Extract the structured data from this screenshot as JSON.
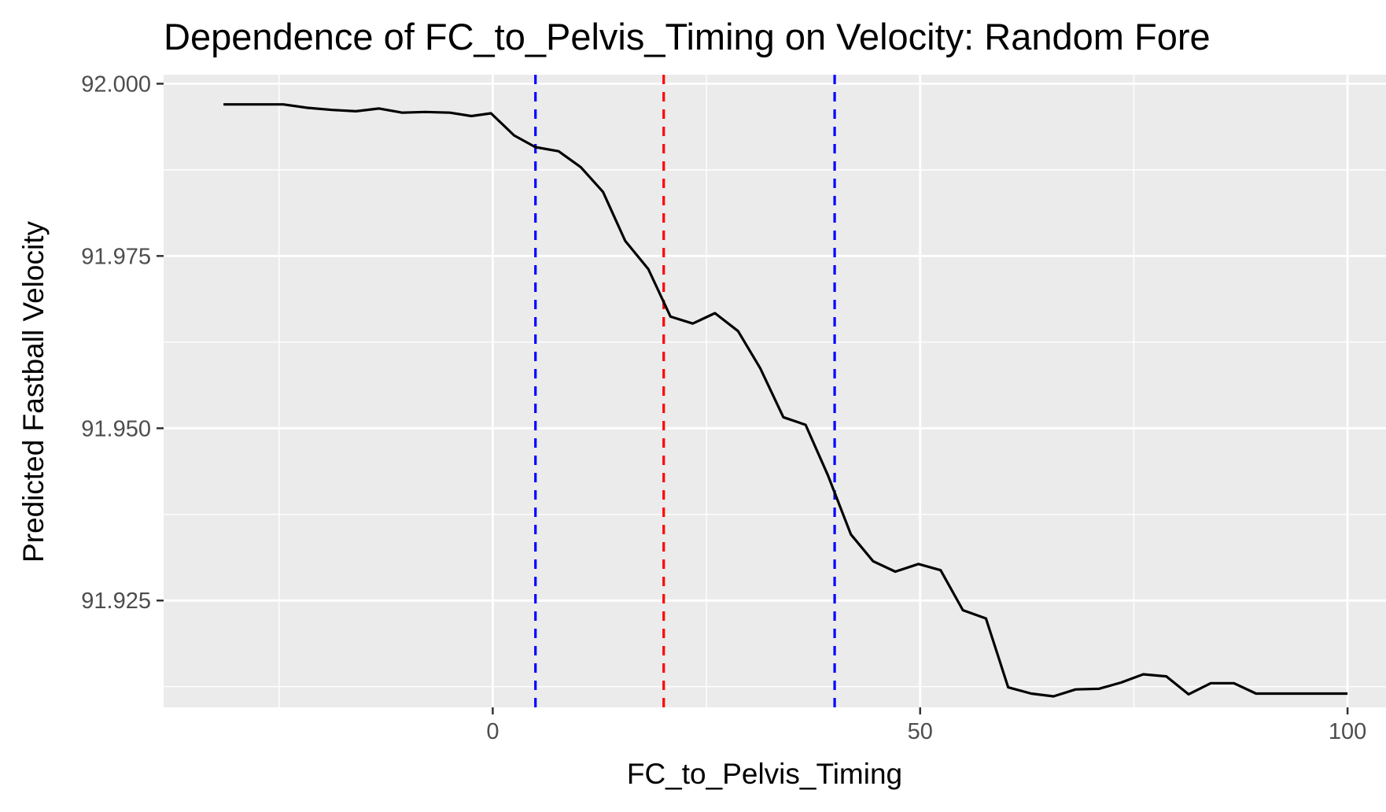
{
  "chart_data": {
    "type": "line",
    "title": "Dependence of FC_to_Pelvis_Timing on Velocity: Random Fore",
    "xlabel": "FC_to_Pelvis_Timing",
    "ylabel": "Predicted Fastball Velocity",
    "xlim": [
      -38.5,
      104.5
    ],
    "ylim": [
      91.9095,
      92.0013
    ],
    "x_ticks": [
      0,
      50,
      100
    ],
    "x_tick_labels": [
      "0",
      "50",
      "100"
    ],
    "x_minor_ticks": [
      -25,
      25,
      75
    ],
    "y_ticks": [
      91.925,
      91.95,
      91.975,
      92.0
    ],
    "y_tick_labels": [
      "91.925",
      "91.950",
      "91.975",
      "92.000"
    ],
    "y_minor_ticks": [
      91.9125,
      91.9375,
      91.9625,
      91.9875
    ],
    "grid": true,
    "colors": {
      "panel_background": "#ebebeb",
      "grid": "#ffffff",
      "line": "#000000",
      "vline_mean": "#ff0000",
      "vline_sd": "#0000ff"
    },
    "vlines": [
      {
        "x": 5,
        "color": "#0000ff",
        "style": "dashed"
      },
      {
        "x": 20,
        "color": "#ff0000",
        "style": "dashed"
      },
      {
        "x": 40,
        "color": "#0000ff",
        "style": "dashed"
      }
    ],
    "series": [
      {
        "x": [
          -31.5,
          -26.3,
          -24.5,
          -21.7,
          -18.8,
          -16,
          -13.3,
          -10.6,
          -7.9,
          -5,
          -2.5,
          -0.2,
          2.5,
          5,
          7.7,
          10.3,
          12.9,
          15.5,
          18.2,
          20.8,
          23.4,
          26,
          28.7,
          31.3,
          34,
          36.6,
          39.2,
          41.9,
          44.5,
          47.1,
          49.8,
          52.4,
          55,
          57.7,
          60.3,
          63,
          65.6,
          68.2,
          70.9,
          73.5,
          76.1,
          78.8,
          81.4,
          84,
          86.7,
          89.3,
          92,
          100
        ],
        "y": [
          91.997,
          91.997,
          91.997,
          91.9965,
          91.9962,
          91.996,
          91.9964,
          91.9958,
          91.9959,
          91.9958,
          91.9953,
          91.9957,
          91.9925,
          91.9908,
          91.9902,
          91.9879,
          91.9843,
          91.9772,
          91.9731,
          91.9662,
          91.9652,
          91.9667,
          91.9641,
          91.9587,
          91.9516,
          91.9505,
          91.9432,
          91.9346,
          91.9307,
          91.9292,
          91.9303,
          91.9294,
          91.9236,
          91.9224,
          91.9124,
          91.9115,
          91.9111,
          91.9121,
          91.9122,
          91.9131,
          91.9143,
          91.914,
          91.9114,
          91.913,
          91.913,
          91.9115,
          91.9115,
          91.9115
        ]
      }
    ]
  }
}
